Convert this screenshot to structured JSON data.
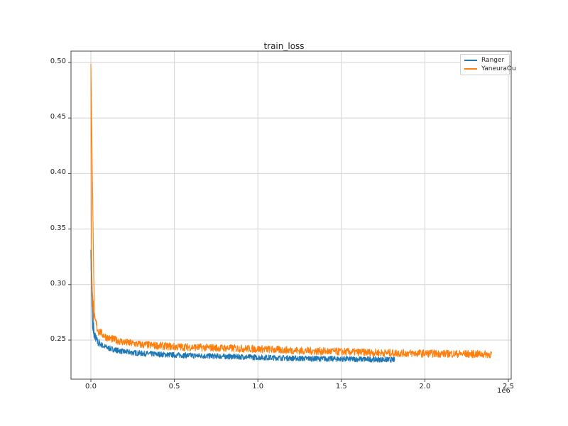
{
  "chart_data": {
    "type": "line",
    "title": "train_loss",
    "xlabel": "",
    "ylabel": "",
    "x_offset_label": "1e6",
    "xlim": [
      -0.11,
      2.51
    ],
    "ylim": [
      0.216,
      0.504
    ],
    "grid": true,
    "legend_position": "upper right",
    "x_ticks": [
      "0.0",
      "0.5",
      "1.0",
      "1.5",
      "2.0",
      "2.5"
    ],
    "y_ticks": [
      "0.25",
      "0.30",
      "0.35",
      "0.40",
      "0.45",
      "0.50"
    ],
    "series": [
      {
        "name": "Ranger",
        "color": "#1f77b4",
        "x": [
          0.0,
          0.005,
          0.01,
          0.02,
          0.04,
          0.07,
          0.1,
          0.15,
          0.2,
          0.3,
          0.5,
          0.75,
          1.0,
          1.25,
          1.5,
          1.75,
          1.82
        ],
        "values": [
          0.33,
          0.29,
          0.265,
          0.255,
          0.248,
          0.245,
          0.243,
          0.241,
          0.2395,
          0.238,
          0.2365,
          0.2355,
          0.2345,
          0.2335,
          0.233,
          0.2325,
          0.2322
        ]
      },
      {
        "name": "YaneuraOu",
        "color": "#ff7f0e",
        "x": [
          0.0,
          0.002,
          0.005,
          0.01,
          0.02,
          0.04,
          0.07,
          0.1,
          0.15,
          0.2,
          0.3,
          0.5,
          0.75,
          1.0,
          1.25,
          1.5,
          1.75,
          2.0,
          2.25,
          2.4
        ],
        "values": [
          0.497,
          0.36,
          0.31,
          0.285,
          0.27,
          0.26,
          0.255,
          0.252,
          0.25,
          0.248,
          0.246,
          0.244,
          0.243,
          0.242,
          0.2405,
          0.2395,
          0.2385,
          0.238,
          0.2375,
          0.2372
        ]
      }
    ]
  }
}
